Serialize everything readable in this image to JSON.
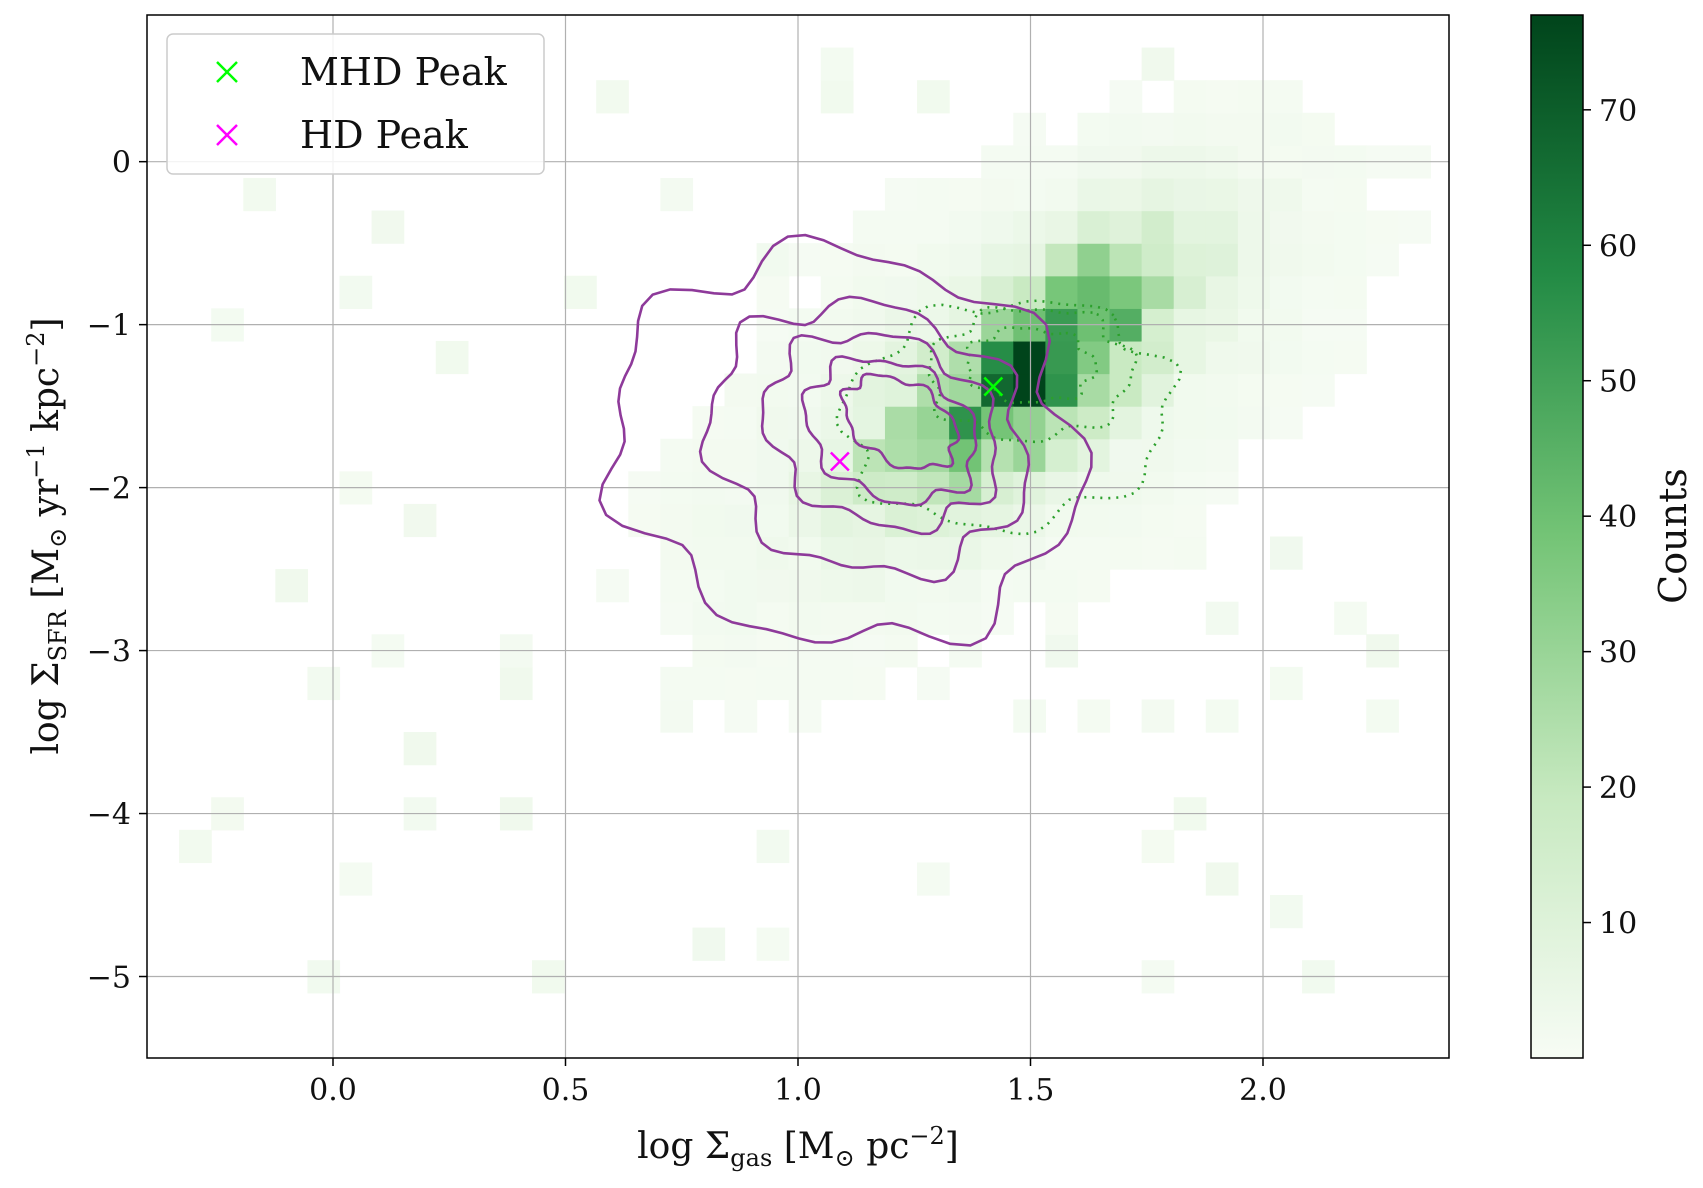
{
  "chart_data": {
    "type": "heatmap",
    "title": "",
    "xlabel": {
      "pre": "log Σ",
      "sub": "gas",
      "post": " [M",
      "sun_sub": "⊙",
      "unit": " pc",
      "sup": "−2",
      "close": "]"
    },
    "ylabel": {
      "pre": "log Σ",
      "sub": "SFR",
      "post": " [M",
      "sun_sub": "⊙",
      "unit1": " yr",
      "sup1": "−1",
      "unit2": " kpc",
      "sup2": "−2",
      "close": "]"
    },
    "xlim": [
      -0.4,
      2.4
    ],
    "ylim": [
      -5.5,
      0.9
    ],
    "x_ticks": [
      0.0,
      0.5,
      1.0,
      1.5,
      2.0
    ],
    "x_tick_labels": [
      "0.0",
      "0.5",
      "1.0",
      "1.5",
      "2.0"
    ],
    "y_ticks": [
      0,
      -1,
      -2,
      -3,
      -4,
      -5
    ],
    "y_tick_labels": [
      "0",
      "−1",
      "−2",
      "−3",
      "−4",
      "−5"
    ],
    "grid": true,
    "bin_width_x": 0.069,
    "bin_width_y": 0.2,
    "colormap": {
      "low": "#f7fcf5",
      "mid": "#74c476",
      "high": "#00441b"
    },
    "colorbar": {
      "label": "Counts",
      "range": [
        0,
        77
      ],
      "ticks": [
        10,
        20,
        30,
        40,
        50,
        60,
        70
      ],
      "tick_labels": [
        "10",
        "20",
        "30",
        "40",
        "50",
        "60",
        "70"
      ]
    },
    "density_model": {
      "components": [
        {
          "cx": 1.55,
          "cy": -1.2,
          "sx": 0.16,
          "sy": 0.45,
          "rho": 0.7,
          "amp": 58
        },
        {
          "cx": 1.3,
          "cy": -1.7,
          "sx": 0.12,
          "sy": 0.28,
          "rho": 0.5,
          "amp": 22
        },
        {
          "cx": 1.45,
          "cy": -1.4,
          "sx": 0.42,
          "sy": 0.95,
          "rho": 0.6,
          "amp": 6
        }
      ]
    },
    "series": [
      {
        "name": "MHD contours",
        "style": "dotted",
        "color": "#2ca02c",
        "levels": [
          {
            "cx": 1.45,
            "cy": -1.55,
            "a": 0.62,
            "b": 1.05,
            "angle": 1.2
          },
          {
            "cx": 1.5,
            "cy": -1.3,
            "a": 0.36,
            "b": 0.68,
            "angle": 1.25
          },
          {
            "cx": 1.5,
            "cy": -1.25,
            "a": 0.2,
            "b": 0.45,
            "angle": 1.3
          }
        ]
      },
      {
        "name": "HD contours",
        "style": "solid",
        "color": "#8e3a9a",
        "levels": [
          {
            "cx": 1.1,
            "cy": -1.75,
            "a": 0.9,
            "b": 1.5,
            "angle": 0.85
          },
          {
            "cx": 1.15,
            "cy": -1.7,
            "a": 0.6,
            "b": 1.05,
            "angle": 0.85
          },
          {
            "cx": 1.18,
            "cy": -1.65,
            "a": 0.42,
            "b": 0.8,
            "angle": 0.9
          },
          {
            "cx": 1.2,
            "cy": -1.65,
            "a": 0.3,
            "b": 0.6,
            "angle": 0.9
          },
          {
            "cx": 1.22,
            "cy": -1.6,
            "a": 0.18,
            "b": 0.42,
            "angle": 0.95
          }
        ]
      }
    ],
    "peaks": [
      {
        "name": "MHD Peak",
        "x": 1.42,
        "y": -1.38,
        "color": "#00ff00"
      },
      {
        "name": "HD Peak",
        "x": 1.09,
        "y": -1.84,
        "color": "#ff00ff"
      }
    ],
    "legend": {
      "placement": "top-left",
      "entries": [
        "MHD Peak",
        "HD Peak"
      ]
    }
  }
}
